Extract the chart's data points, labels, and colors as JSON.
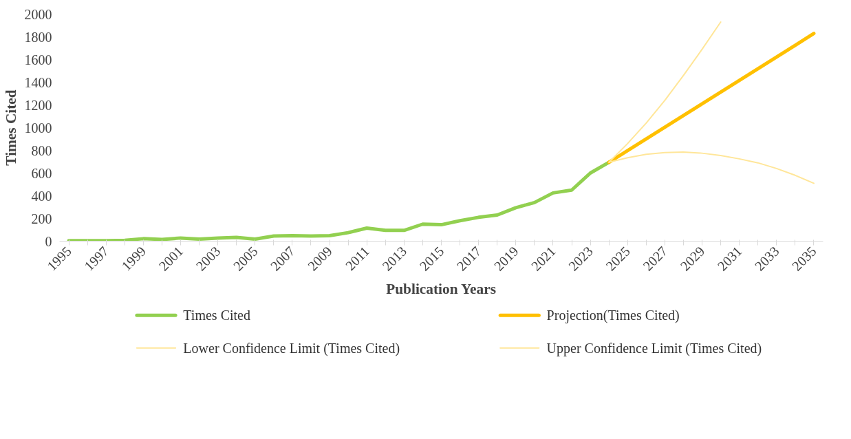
{
  "chart_data": {
    "type": "line",
    "xlabel": "Publication Years",
    "ylabel": "Times Cited",
    "categories": [
      "1995",
      null,
      "1997",
      null,
      "1999",
      null,
      "2001",
      null,
      "2003",
      null,
      "2005",
      null,
      "2007",
      null,
      "2009",
      null,
      "2011",
      null,
      "2013",
      null,
      "2015",
      null,
      "2017",
      null,
      "2019",
      null,
      "2021",
      null,
      "2023",
      null,
      "2025",
      null,
      "2027",
      null,
      "2029",
      null,
      "2031",
      null,
      "2033",
      null,
      "2035"
    ],
    "series": [
      {
        "name": "Times Cited",
        "color": "#92d050",
        "values": [
          5,
          5,
          5,
          8,
          22,
          15,
          28,
          18,
          28,
          33,
          18,
          45,
          48,
          45,
          48,
          75,
          115,
          95,
          95,
          150,
          145,
          180,
          210,
          230,
          295,
          340,
          425,
          450,
          600,
          695,
          null,
          null,
          null,
          null,
          null,
          null,
          null,
          null,
          null,
          null,
          null
        ]
      },
      {
        "name": "Projection(Times Cited)",
        "color": "#ffc000",
        "values": [
          null,
          null,
          null,
          null,
          null,
          null,
          null,
          null,
          null,
          null,
          null,
          null,
          null,
          null,
          null,
          null,
          null,
          null,
          null,
          null,
          null,
          null,
          null,
          null,
          null,
          null,
          null,
          null,
          null,
          695,
          798,
          901,
          1004,
          1107,
          1210,
          1313,
          1416,
          1519,
          1622,
          1725,
          1830
        ]
      },
      {
        "name": "Lower Confidence Limit (Times Cited)",
        "color": "#ffe699",
        "values": [
          null,
          null,
          null,
          null,
          null,
          null,
          null,
          null,
          null,
          null,
          null,
          null,
          null,
          null,
          null,
          null,
          null,
          null,
          null,
          null,
          null,
          null,
          null,
          null,
          null,
          null,
          null,
          null,
          null,
          695,
          735,
          765,
          780,
          785,
          775,
          755,
          725,
          690,
          640,
          580,
          510
        ]
      },
      {
        "name": "Upper Confidence Limit (Times Cited)",
        "color": "#ffe699",
        "values": [
          null,
          null,
          null,
          null,
          null,
          null,
          null,
          null,
          null,
          null,
          null,
          null,
          null,
          null,
          null,
          null,
          null,
          null,
          null,
          null,
          null,
          null,
          null,
          null,
          null,
          null,
          null,
          null,
          null,
          695,
          860,
          1040,
          1240,
          1460,
          1690,
          1930,
          null,
          null,
          null,
          null,
          null
        ]
      }
    ],
    "ylim": [
      0,
      2000
    ],
    "yticks": [
      0,
      200,
      400,
      600,
      800,
      1000,
      1200,
      1400,
      1600,
      1800,
      2000
    ],
    "legend": "bottom",
    "line_style": "solid"
  }
}
